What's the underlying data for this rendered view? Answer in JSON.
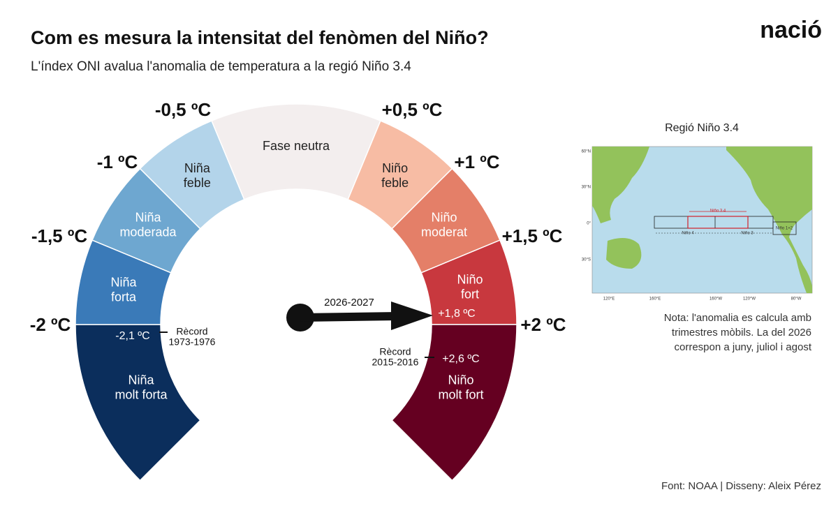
{
  "header": {
    "title": "Com es mesura la intensitat del fenòmen del Niño?",
    "subtitle": "L'índex ONI avalua l'anomalia de temperatura a la regió Niño 3.4",
    "logo": "nació"
  },
  "gauge": {
    "segments": [
      {
        "lines": [
          "Niña",
          "molt forta"
        ],
        "color": "#0b2e5c"
      },
      {
        "lines": [
          "Niña",
          "forta"
        ],
        "color": "#3a7ab8"
      },
      {
        "lines": [
          "Niña",
          "moderada"
        ],
        "color": "#6ea7d0"
      },
      {
        "lines": [
          "Niña",
          "feble"
        ],
        "color": "#b3d4ea"
      },
      {
        "lines": [
          "Fase neutra"
        ],
        "color": "#f3eeee"
      },
      {
        "lines": [
          "Niño",
          "feble"
        ],
        "color": "#f7bca4"
      },
      {
        "lines": [
          "Niño",
          "moderat"
        ],
        "color": "#e47f68"
      },
      {
        "lines": [
          "Niño",
          "fort"
        ],
        "color": "#c8383e"
      },
      {
        "lines": [
          "Niño",
          "molt fort"
        ],
        "color": "#650021"
      }
    ],
    "thresholds": [
      "-2 ºC",
      "-1,5 ºC",
      "-1 ºC",
      "-0,5 ºC",
      "+0,5 ºC",
      "+1 ºC",
      "+1,5 ºC",
      "+2 ºC"
    ],
    "pointer": {
      "period": "2026-2027",
      "value": "+1,8 ºC"
    },
    "records": [
      {
        "label": "Rècord",
        "period": "1973-1976",
        "value": "-2,1 ºC"
      },
      {
        "label": "Rècord",
        "period": "2015-2016",
        "value": "+2,6 ºC"
      }
    ]
  },
  "map": {
    "title": "Regió Niño 3.4",
    "lat_labels": [
      "60°N",
      "30°N",
      "0°",
      "30°S"
    ],
    "lon_labels": [
      "120°E",
      "160°E",
      "160°W",
      "120°W",
      "80°W"
    ],
    "regions": [
      "Niño 3.4",
      "Niño 4",
      "Niño 3",
      "Niño 1+2"
    ]
  },
  "note": [
    "Nota: l'anomalia es calcula amb",
    "trimestres mòbils. La del 2026",
    "correspon a juny, juliol i agost"
  ],
  "footer": "Font: NOAA | Disseny: Aleix Pérez"
}
